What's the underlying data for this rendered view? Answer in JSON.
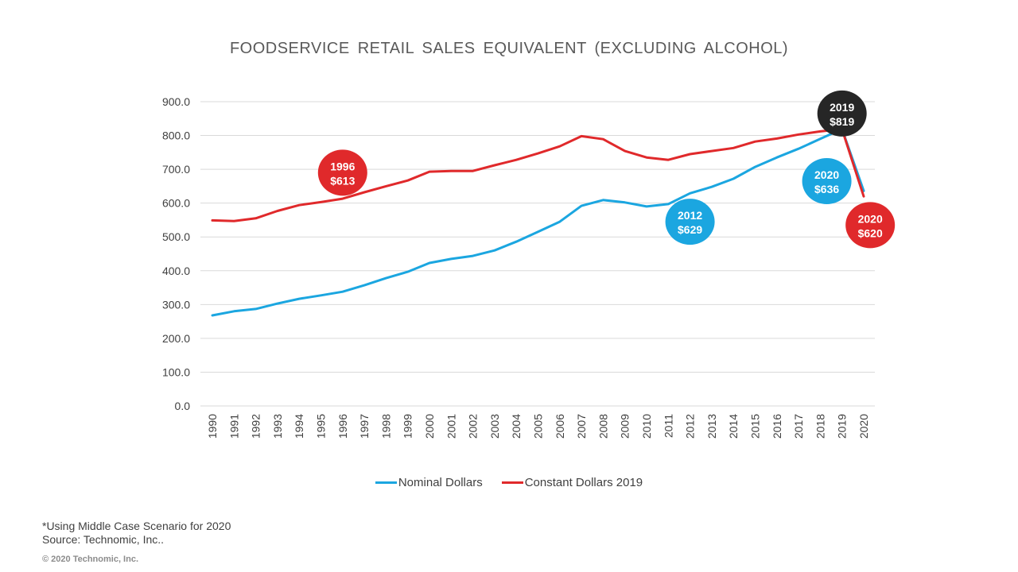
{
  "chart_data": {
    "type": "line",
    "title": "FOODSERVICE RETAIL SALES EQUIVALENT (EXCLUDING ALCOHOL)",
    "xlabel": "",
    "ylabel": "",
    "ylim": [
      0,
      900
    ],
    "yticks": [
      "0.0",
      "100.0",
      "200.0",
      "300.0",
      "400.0",
      "500.0",
      "600.0",
      "700.0",
      "800.0",
      "900.0"
    ],
    "ytick_values": [
      0,
      100,
      200,
      300,
      400,
      500,
      600,
      700,
      800,
      900
    ],
    "grid": true,
    "legend_position": "bottom",
    "x": [
      "1990",
      "1991",
      "1992",
      "1993",
      "1994",
      "1995",
      "1996",
      "1997",
      "1998",
      "1999",
      "2000",
      "2001",
      "2002",
      "2003",
      "2004",
      "2005",
      "2006",
      "2007",
      "2008",
      "2009",
      "2010",
      "2011",
      "2012",
      "2013",
      "2014",
      "2015",
      "2016",
      "2017",
      "2018",
      "2019",
      "2020"
    ],
    "series": [
      {
        "name": "Nominal Dollars",
        "color": "#1ba6e0",
        "values": [
          268,
          280,
          287,
          303,
          317,
          327,
          338,
          357,
          378,
          397,
          423,
          435,
          444,
          460,
          486,
          515,
          545,
          592,
          609,
          602,
          590,
          597,
          629,
          648,
          672,
          707,
          735,
          761,
          790,
          819,
          636
        ]
      },
      {
        "name": "Constant Dollars 2019",
        "color": "#e0292b",
        "values": [
          549,
          547,
          555,
          577,
          594,
          603,
          613,
          632,
          650,
          667,
          693,
          695,
          695,
          712,
          728,
          747,
          768,
          798,
          789,
          754,
          735,
          728,
          745,
          754,
          763,
          782,
          791,
          803,
          812,
          819,
          620
        ]
      }
    ],
    "annotations": [
      {
        "year_label": "1996",
        "value_label": "$613",
        "color": "#e0292b",
        "x": "1996",
        "y": 690
      },
      {
        "year_label": "2012",
        "value_label": "$629",
        "color": "#1ba6e0",
        "x": "2012",
        "y": 545
      },
      {
        "year_label": "2019",
        "value_label": "$819",
        "color": "#262626",
        "x": "2019",
        "y": 865
      },
      {
        "year_label": "2020",
        "value_label": "$636",
        "color": "#1ba6e0",
        "x": "2018.3",
        "y": 665
      },
      {
        "year_label": "2020",
        "value_label": "$620",
        "color": "#e0292b",
        "x": "2020.3",
        "y": 535
      }
    ]
  },
  "footnote": {
    "line1": "*Using Middle  Case Scenario for 2020",
    "line2": "Source:  Technomic, Inc.."
  },
  "copyright": "© 2020 Technomic, Inc."
}
